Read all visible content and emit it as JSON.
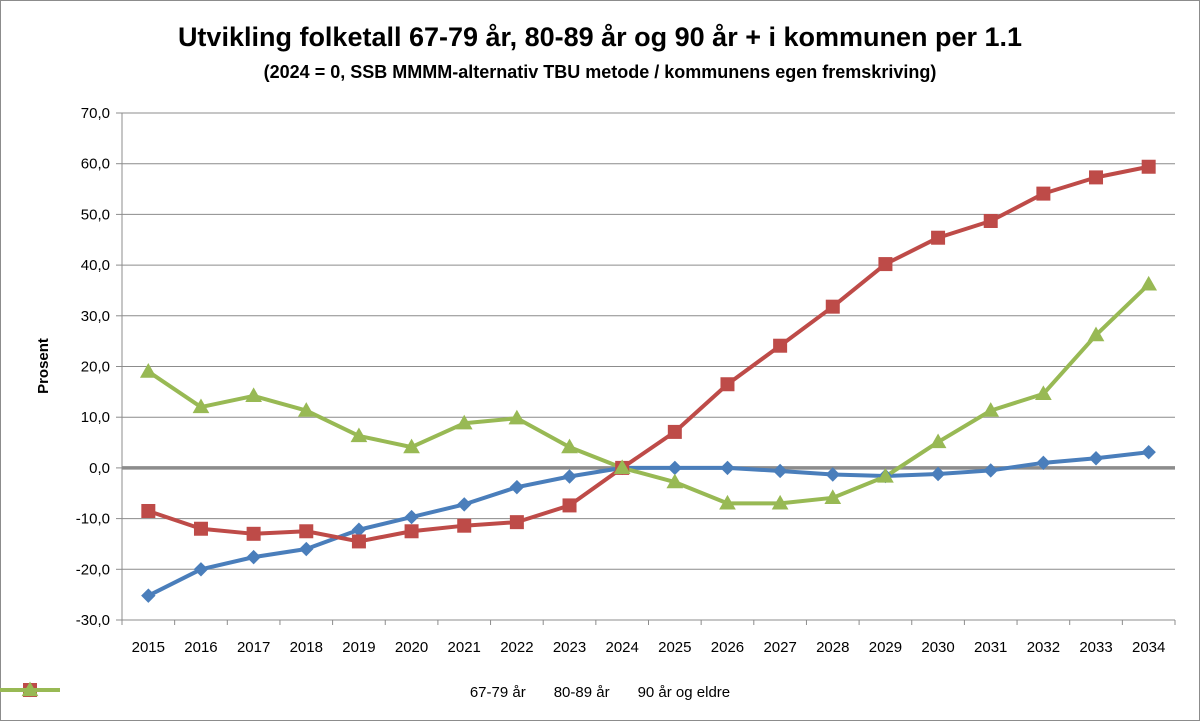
{
  "chart_data": {
    "type": "line",
    "title": "Utvikling folketall 67-79 år, 80-89 år og 90 år + i kommunen per 1.1",
    "subtitle": "(2024 = 0, SSB MMMM-alternativ TBU metode / kommunens egen fremskriving)",
    "xlabel": "",
    "ylabel": "Prosent",
    "ylim": [
      -30,
      70
    ],
    "y_ticks": [
      "70,0",
      "60,0",
      "50,0",
      "40,0",
      "30,0",
      "20,0",
      "10,0",
      "0,0",
      "-10,0",
      "-20,0",
      "-30,0"
    ],
    "y_tick_values": [
      70,
      60,
      50,
      40,
      30,
      20,
      10,
      0,
      -10,
      -20,
      -30
    ],
    "categories": [
      "2015",
      "2016",
      "2017",
      "2018",
      "2019",
      "2020",
      "2021",
      "2022",
      "2023",
      "2024",
      "2025",
      "2026",
      "2027",
      "2028",
      "2029",
      "2030",
      "2031",
      "2032",
      "2033",
      "2034"
    ],
    "grid": true,
    "legend_position": "bottom",
    "series": [
      {
        "name": "67-79 år",
        "color": "#4a7ebb",
        "marker": "diamond",
        "values": [
          -25.2,
          -20.0,
          -17.6,
          -16.0,
          -12.2,
          -9.7,
          -7.2,
          -3.8,
          -1.7,
          0.0,
          0.0,
          0.0,
          -0.6,
          -1.3,
          -1.6,
          -1.2,
          -0.5,
          1.0,
          1.9,
          3.1
        ]
      },
      {
        "name": "80-89 år",
        "color": "#be4b48",
        "marker": "square",
        "values": [
          -8.5,
          -12.0,
          -13.0,
          -12.5,
          -14.5,
          -12.5,
          -11.4,
          -10.7,
          -7.4,
          0.0,
          7.1,
          16.5,
          24.1,
          31.8,
          40.2,
          45.4,
          48.7,
          54.1,
          57.3,
          59.4
        ]
      },
      {
        "name": "90 år og eldre",
        "color": "#98b954",
        "marker": "triangle",
        "values": [
          19.0,
          12.0,
          14.2,
          11.3,
          6.3,
          4.1,
          8.8,
          9.8,
          4.1,
          0.0,
          -2.8,
          -7.0,
          -7.0,
          -5.9,
          -1.7,
          5.1,
          11.3,
          14.6,
          26.2,
          36.2
        ]
      }
    ]
  }
}
